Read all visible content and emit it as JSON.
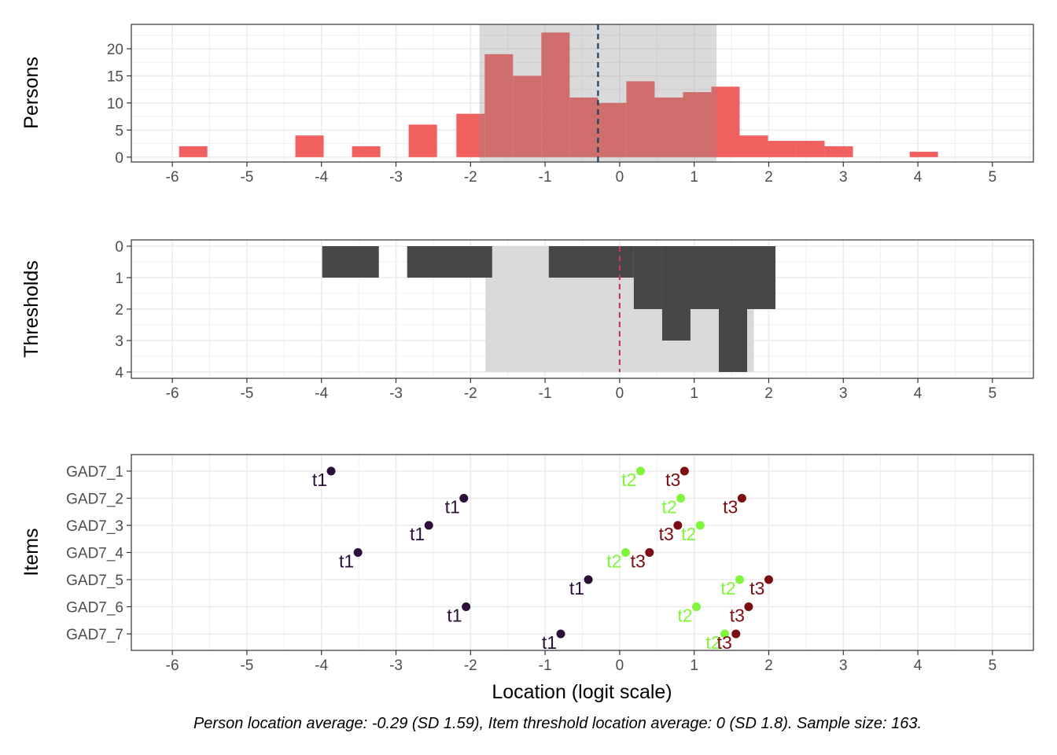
{
  "caption": "Person location average: -0.29 (SD 1.59), Item threshold location average: 0 (SD 1.8). Sample size: 163.",
  "xlabel": "Location (logit scale)",
  "colors": {
    "person_bar": "#f0605f",
    "threshold_bar": "#474747",
    "band": "#d9d9d9",
    "person_mean_line": "#1d3f5e",
    "threshold_mean_line": "#c8375a",
    "t1": "#2b0f3a",
    "t2": "#7ff53c",
    "t3": "#7d0c10",
    "grid": "#ebebeb"
  },
  "chart_data": [
    {
      "type": "bar",
      "panel": "persons",
      "ylabel": "Persons",
      "xlim": [
        -6.55,
        5.55
      ],
      "ylim": [
        -0.9,
        24.5
      ],
      "x_ticks": [
        "-6",
        "-5",
        "-4",
        "-3",
        "-2",
        "-1",
        "0",
        "1",
        "2",
        "3",
        "4",
        "5"
      ],
      "y_ticks": [
        "0",
        "5",
        "10",
        "15",
        "20"
      ],
      "bin_width": 0.38,
      "bins": [
        {
          "x": -5.72,
          "count": 2
        },
        {
          "x": -4.16,
          "count": 4
        },
        {
          "x": -3.4,
          "count": 2
        },
        {
          "x": -2.64,
          "count": 6
        },
        {
          "x": -2.0,
          "count": 8
        },
        {
          "x": -1.62,
          "count": 19
        },
        {
          "x": -1.24,
          "count": 15
        },
        {
          "x": -0.86,
          "count": 23
        },
        {
          "x": -0.48,
          "count": 11
        },
        {
          "x": -0.1,
          "count": 10
        },
        {
          "x": 0.28,
          "count": 14
        },
        {
          "x": 0.66,
          "count": 11
        },
        {
          "x": 1.04,
          "count": 12
        },
        {
          "x": 1.42,
          "count": 13
        },
        {
          "x": 1.8,
          "count": 4
        },
        {
          "x": 2.18,
          "count": 3
        },
        {
          "x": 2.56,
          "count": 3
        },
        {
          "x": 2.94,
          "count": 2
        },
        {
          "x": 4.08,
          "count": 1
        }
      ],
      "mean": -0.29,
      "sd": 1.59
    },
    {
      "type": "bar",
      "panel": "thresholds",
      "ylabel": "Thresholds",
      "xlim": [
        -6.55,
        5.55
      ],
      "ylim": [
        4.2,
        -0.2
      ],
      "y_reversed": true,
      "x_ticks": [
        "-6",
        "-5",
        "-4",
        "-3",
        "-2",
        "-1",
        "0",
        "1",
        "2",
        "3",
        "4",
        "5"
      ],
      "y_ticks": [
        "0",
        "1",
        "2",
        "3",
        "4"
      ],
      "bars": [
        {
          "x0": -3.99,
          "x1": -3.23,
          "count": 1
        },
        {
          "x0": -2.85,
          "x1": -1.71,
          "count": 1
        },
        {
          "x0": -0.95,
          "x1": 0.19,
          "count": 1
        },
        {
          "x0": 0.19,
          "x1": 0.57,
          "count": 2
        },
        {
          "x0": 0.57,
          "x1": 0.95,
          "count": 3
        },
        {
          "x0": 0.95,
          "x1": 1.33,
          "count": 2
        },
        {
          "x0": 1.33,
          "x1": 1.71,
          "count": 4
        },
        {
          "x0": 1.71,
          "x1": 2.09,
          "count": 2
        }
      ],
      "mean": 0,
      "sd": 1.8
    },
    {
      "type": "scatter",
      "panel": "items",
      "ylabel": "Items",
      "xlim": [
        -6.55,
        5.55
      ],
      "x_ticks": [
        "-6",
        "-5",
        "-4",
        "-3",
        "-2",
        "-1",
        "0",
        "1",
        "2",
        "3",
        "4",
        "5"
      ],
      "items": [
        "GAD7_1",
        "GAD7_2",
        "GAD7_3",
        "GAD7_4",
        "GAD7_5",
        "GAD7_6",
        "GAD7_7"
      ],
      "series": [
        {
          "name": "t1",
          "values": [
            -3.87,
            -2.09,
            -2.56,
            -3.51,
            -0.42,
            -2.06,
            -0.79
          ]
        },
        {
          "name": "t2",
          "values": [
            0.28,
            0.82,
            1.08,
            0.08,
            1.61,
            1.03,
            1.41
          ]
        },
        {
          "name": "t3",
          "values": [
            0.87,
            1.64,
            0.78,
            0.4,
            2.0,
            1.73,
            1.56
          ]
        }
      ]
    }
  ]
}
